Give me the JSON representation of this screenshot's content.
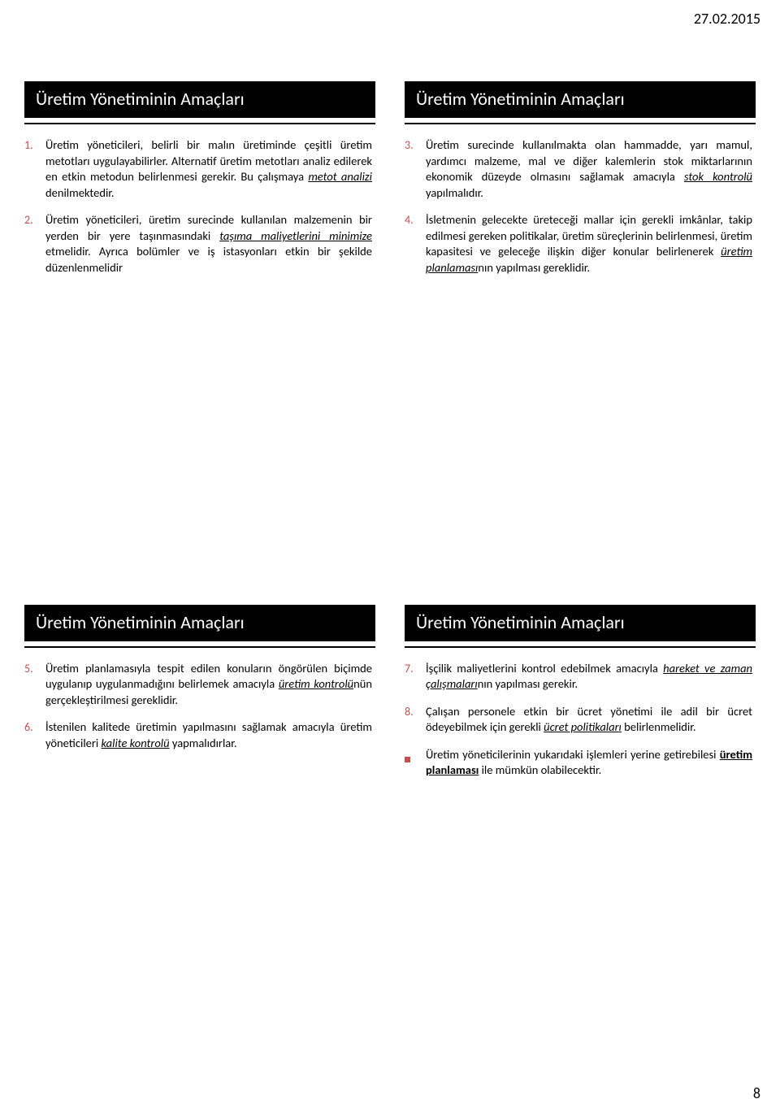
{
  "date": "27.02.2015",
  "page_number": "8",
  "colors": {
    "accent": "#c0504d",
    "title_bg": "#000000",
    "title_fg": "#ffffff",
    "text": "#000000"
  },
  "slides": {
    "tl": {
      "title": "Üretim Yönetiminin Amaçları",
      "items": [
        {
          "n": "1.",
          "segments": [
            {
              "t": "Üretim yöneticileri, belirli bir malın üretiminde çeşitli üretim metotları uygulayabilirler. Alternatif üretim metotları analiz edilerek en etkin metodun belirlenmesi gerekir. Bu çalışmaya "
            },
            {
              "t": "metot analizi",
              "style": "u-it"
            },
            {
              "t": " denilmektedir."
            }
          ]
        },
        {
          "n": "2.",
          "segments": [
            {
              "t": "Üretim yöneticileri, üretim surecinde kullanılan malzemenin bir yerden bir yere taşınmasındaki "
            },
            {
              "t": "taşıma maliyetlerini minimize",
              "style": "u-it"
            },
            {
              "t": " etmelidir. Ayrıca bolümler ve iş istasyonları etkin bir şekilde düzenlenmelidir"
            }
          ]
        }
      ]
    },
    "tr": {
      "title": "Üretim Yönetiminin Amaçları",
      "items": [
        {
          "n": "3.",
          "segments": [
            {
              "t": "Üretim surecinde kullanılmakta olan hammadde, yarı mamul, yardımcı malzeme, mal ve diğer kalemlerin stok miktarlarının ekonomik düzeyde olmasını sağlamak amacıyla "
            },
            {
              "t": "stok kontrolü",
              "style": "u-it"
            },
            {
              "t": " yapılmalıdır."
            }
          ]
        },
        {
          "n": "4.",
          "segments": [
            {
              "t": "İsletmenin gelecekte üreteceği mallar için gerekli imkânlar, takip edilmesi gereken politikalar, üretim süreçlerinin belirlenmesi, üretim kapasitesi ve geleceğe ilişkin diğer konular belirlenerek "
            },
            {
              "t": "üretim planlaması",
              "style": "u-it"
            },
            {
              "t": "nın yapılması gereklidir."
            }
          ]
        }
      ]
    },
    "bl": {
      "title": "Üretim Yönetiminin Amaçları",
      "items": [
        {
          "n": "5.",
          "segments": [
            {
              "t": "Üretim planlamasıyla tespit edilen konuların öngörülen biçimde uygulanıp uygulanmadığını belirlemek amacıyla "
            },
            {
              "t": "üretim kontrolü",
              "style": "u-it"
            },
            {
              "t": "nün gerçekleştirilmesi gereklidir."
            }
          ]
        },
        {
          "n": "6.",
          "segments": [
            {
              "t": "İstenilen kalitede üretimin yapılmasını sağlamak amacıyla üretim yöneticileri "
            },
            {
              "t": "kalite kontrolü",
              "style": "u-it"
            },
            {
              "t": " yapmalıdırlar."
            }
          ]
        }
      ]
    },
    "br": {
      "title": "Üretim Yönetiminin Amaçları",
      "items": [
        {
          "n": "7.",
          "segments": [
            {
              "t": "İşçilik maliyetlerini kontrol edebilmek amacıyla "
            },
            {
              "t": "hareket ve zaman çalışmaları",
              "style": "u-it"
            },
            {
              "t": "nın yapılması gerekir."
            }
          ]
        },
        {
          "n": "8.",
          "segments": [
            {
              "t": "Çalışan personele etkin bir ücret yönetimi ile adil bir ücret ödeyebilmek için gerekli "
            },
            {
              "t": "ücret politikaları",
              "style": "u-it"
            },
            {
              "t": " belirlenmelidir."
            }
          ]
        },
        {
          "n": "sq",
          "segments": [
            {
              "t": "Üretim yöneticilerinin yukarıdaki işlemleri yerine getirebilesi "
            },
            {
              "t": "üretim planlaması",
              "style": "u-b"
            },
            {
              "t": " ile mümkün olabilecektir."
            }
          ]
        }
      ]
    }
  }
}
